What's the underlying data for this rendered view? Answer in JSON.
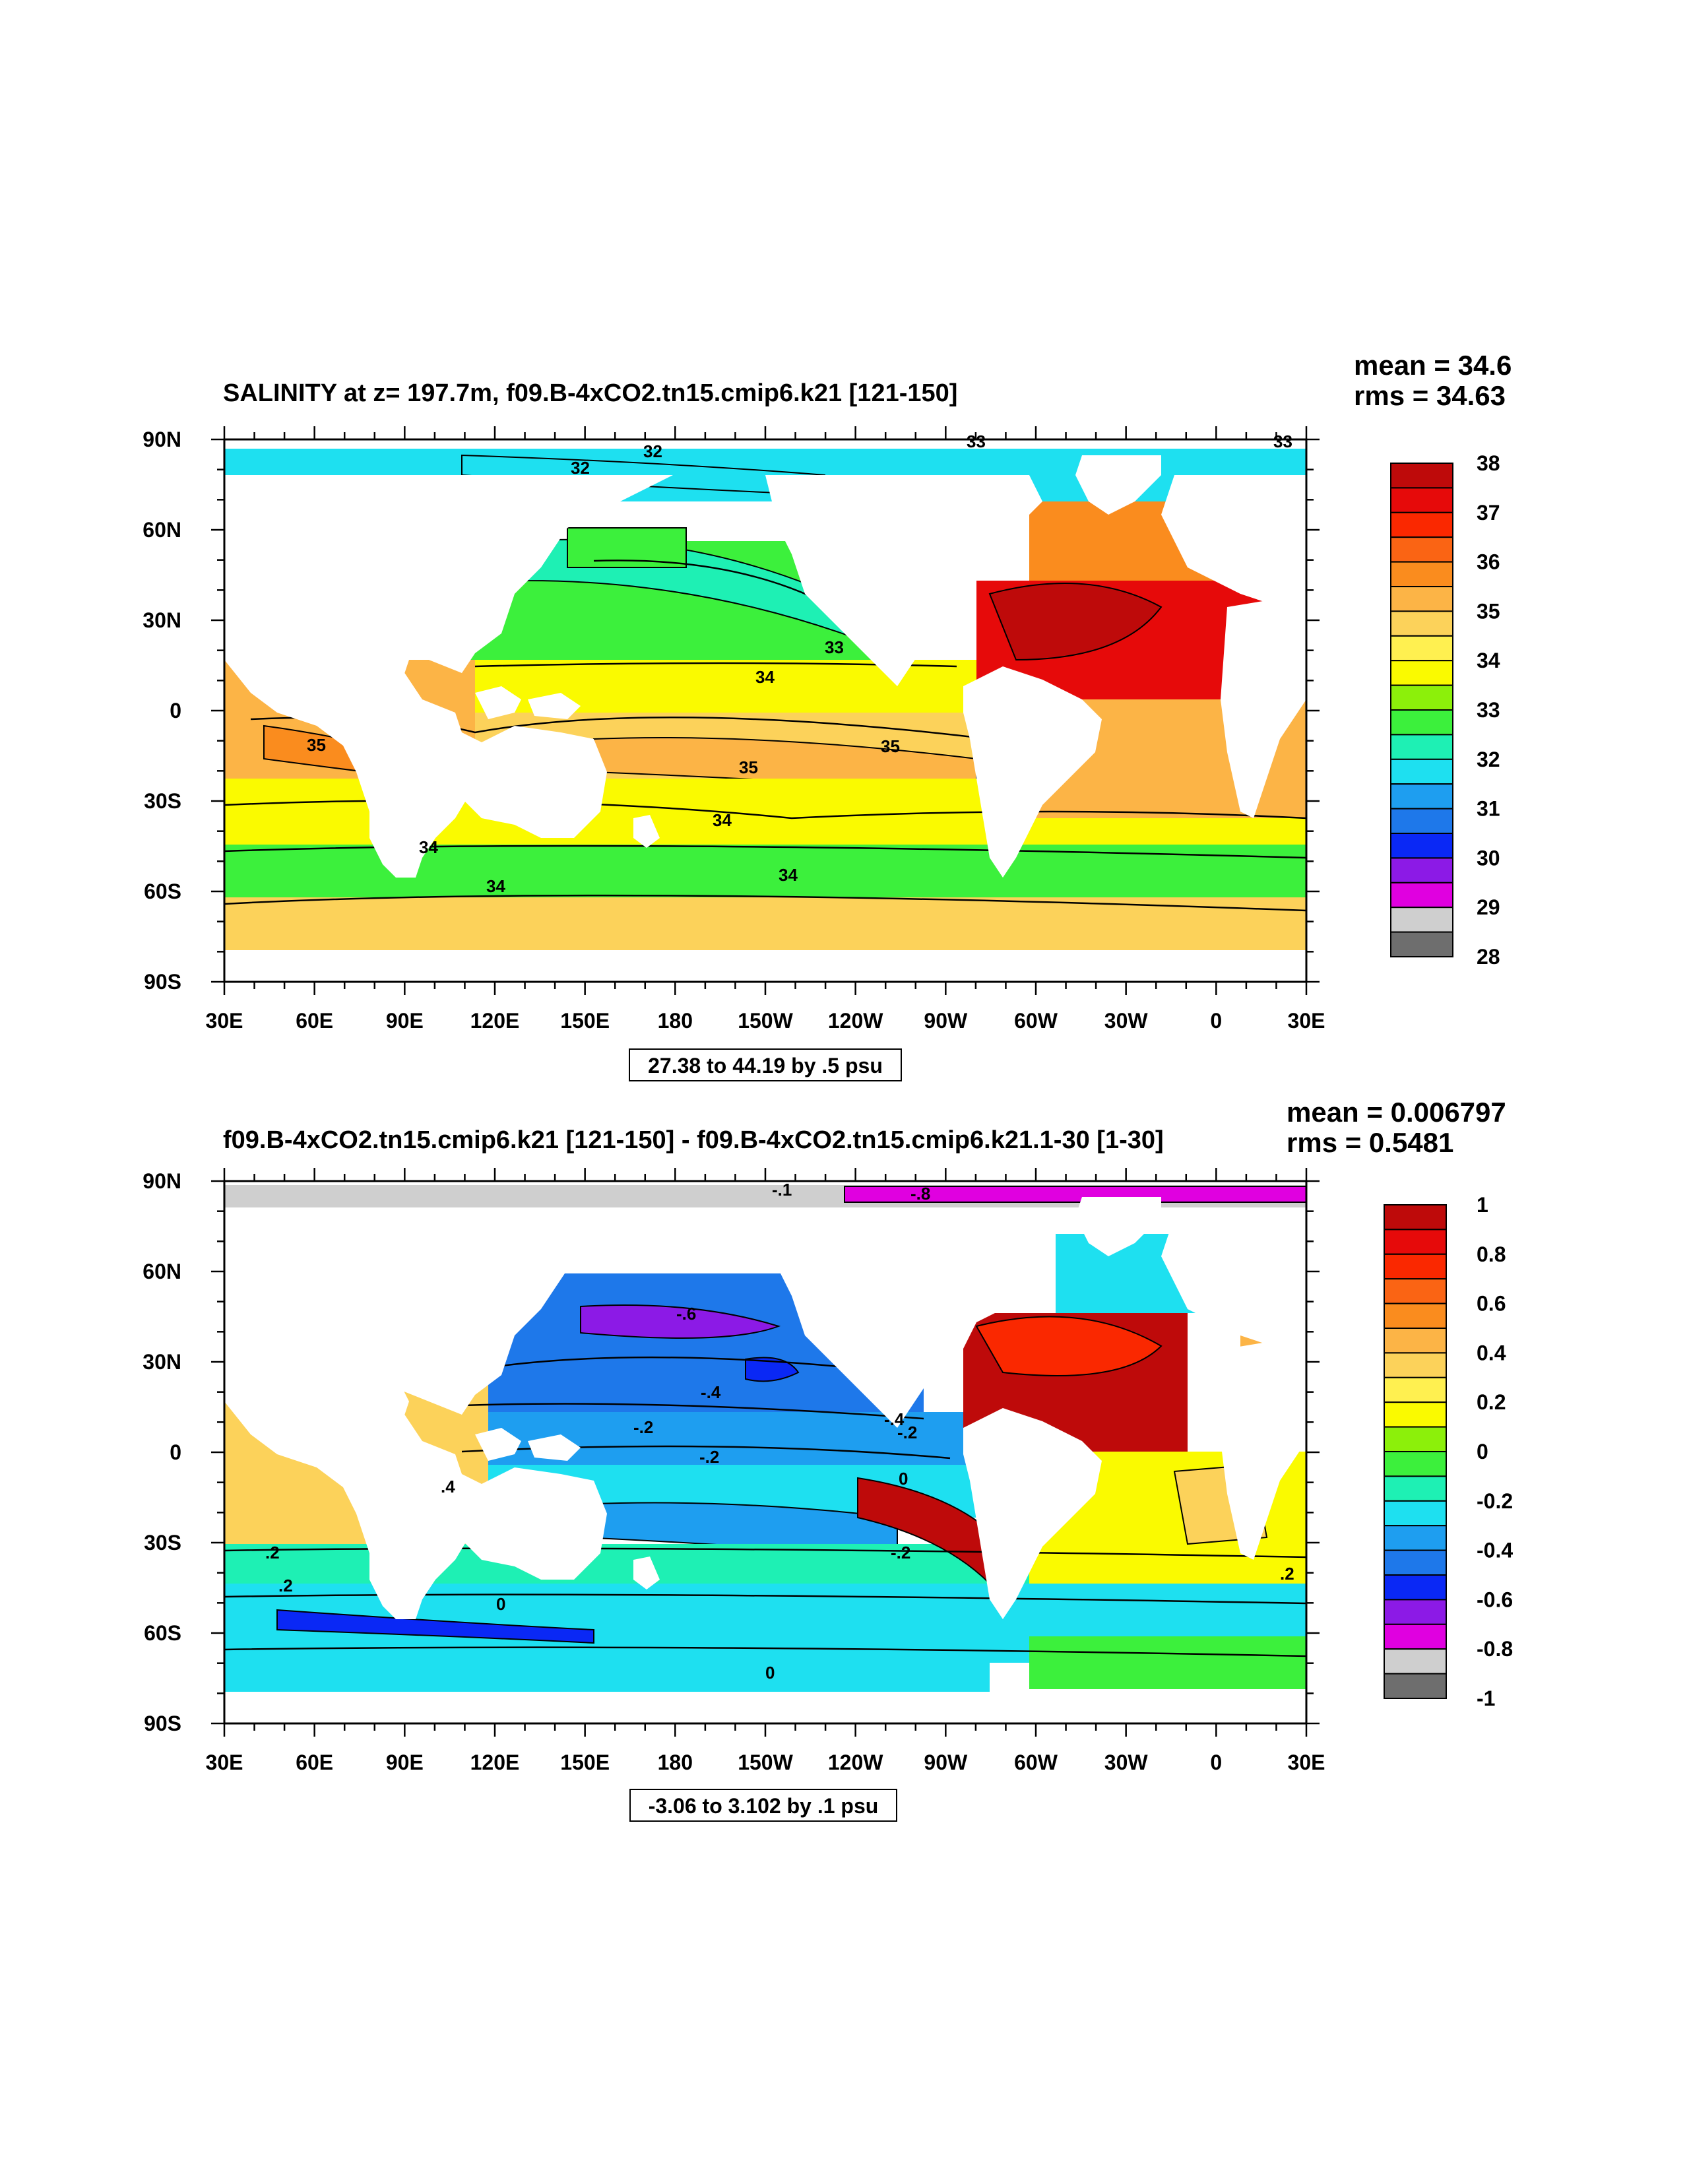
{
  "panels": [
    {
      "title": "SALINITY at z= 197.7m, f09.B-4xCO2.tn15.cmip6.k21 [121-150]",
      "stats": {
        "mean": "mean = 34.6",
        "rms": "rms = 34.63"
      },
      "range_label": "27.38 to 44.19 by .5 psu",
      "colorbar": {
        "colors": [
          "#6e6e6e",
          "#cfcfcf",
          "#e000e0",
          "#8c1ae6",
          "#0a28f5",
          "#1e78ea",
          "#1e9ef0",
          "#1ee0f0",
          "#1ef0b4",
          "#3cf03c",
          "#8cf00a",
          "#fafa00",
          "#fff050",
          "#fcd25a",
          "#fcb446",
          "#fa8c1e",
          "#fa6414",
          "#fa2800",
          "#e60a0a",
          "#be0a0a"
        ],
        "labels": [
          "38",
          "37",
          "36",
          "35",
          "34",
          "33",
          "32",
          "31",
          "30",
          "29",
          "28"
        ]
      },
      "contour_labels": [
        "32",
        "32",
        "33",
        "33",
        "33",
        "34",
        "34",
        "34",
        "34",
        "34",
        "35",
        "35",
        "35"
      ]
    },
    {
      "title": "f09.B-4xCO2.tn15.cmip6.k21 [121-150] - f09.B-4xCO2.tn15.cmip6.k21.1-30 [1-30]",
      "stats": {
        "mean": "mean = 0.006797",
        "rms": "rms = 0.5481"
      },
      "range_label": "-3.06 to 3.102 by .1 psu",
      "colorbar": {
        "colors": [
          "#6e6e6e",
          "#cfcfcf",
          "#e000e0",
          "#8c1ae6",
          "#0a28f5",
          "#1e78ea",
          "#1e9ef0",
          "#1ee0f0",
          "#1ef0b4",
          "#3cf03c",
          "#8cf00a",
          "#fafa00",
          "#fff050",
          "#fcd25a",
          "#fcb446",
          "#fa8c1e",
          "#fa6414",
          "#fa2800",
          "#e60a0a",
          "#be0a0a"
        ],
        "labels": [
          "1",
          "0.8",
          "0.6",
          "0.4",
          "0.2",
          "0",
          "-0.2",
          "-0.4",
          "-0.6",
          "-0.8",
          "-1"
        ]
      },
      "contour_labels": [
        "-.6",
        "-.4",
        "-.2",
        "-.2",
        "-.2",
        "-.4",
        "0",
        ".4",
        ".2",
        ".2",
        ".2",
        "0",
        "-.2",
        "0",
        "-.1",
        "-.8"
      ]
    }
  ],
  "axes": {
    "lon_ticks": [
      "30E",
      "60E",
      "90E",
      "120E",
      "150E",
      "180",
      "150W",
      "120W",
      "90W",
      "60W",
      "30W",
      "0",
      "30E"
    ],
    "lat_ticks": [
      "90N",
      "60N",
      "30N",
      "0",
      "30S",
      "60S",
      "90S"
    ]
  }
}
